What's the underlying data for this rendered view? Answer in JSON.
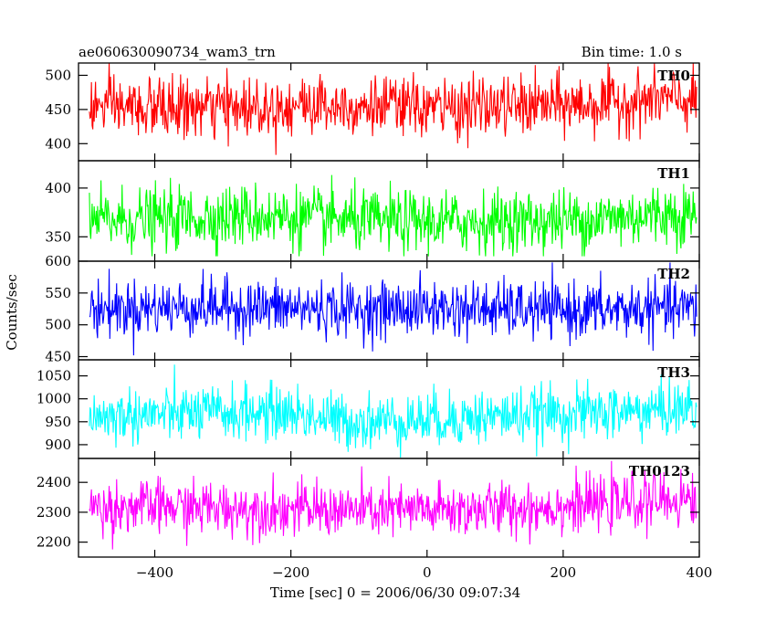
{
  "header": {
    "title": "ae060630090734_wam3_trn",
    "bin_time": "Bin time: 1.0 s"
  },
  "chart_data": {
    "type": "line",
    "x_range": [
      -512,
      400
    ],
    "xlabel": "Time [sec] 0 = 2006/06/30 09:07:34",
    "ylabel": "Counts/sec",
    "x_ticks": [
      -400,
      -200,
      0,
      200,
      400
    ],
    "x_tick_labels": [
      "−400",
      "−200",
      "0",
      "200",
      "400"
    ],
    "grid": false,
    "panels": [
      {
        "label": "TH0",
        "color": "#ff0000",
        "ylim": [
          375,
          518
        ],
        "y_ticks": [
          400,
          450,
          500
        ],
        "y_tick_labels": [
          "400",
          "450",
          "500"
        ],
        "mean": 455,
        "noise_sd": 22,
        "noise_clip": [
          378,
          518
        ],
        "trend": [
          [
            -512,
            455
          ],
          [
            -420,
            452
          ],
          [
            -300,
            452
          ],
          [
            -150,
            458
          ],
          [
            0,
            452
          ],
          [
            150,
            455
          ],
          [
            250,
            458
          ],
          [
            340,
            465
          ],
          [
            400,
            462
          ]
        ]
      },
      {
        "label": "TH1",
        "color": "#00ff00",
        "ylim": [
          325,
          428
        ],
        "y_ticks": [
          350,
          400
        ],
        "y_tick_labels": [
          "350",
          "400"
        ],
        "mean": 368,
        "noise_sd": 16,
        "noise_clip": [
          330,
          428
        ],
        "trend": [
          [
            -512,
            366
          ],
          [
            -400,
            368
          ],
          [
            -250,
            372
          ],
          [
            -100,
            366
          ],
          [
            0,
            365
          ],
          [
            150,
            366
          ],
          [
            250,
            368
          ],
          [
            350,
            374
          ],
          [
            400,
            372
          ]
        ]
      },
      {
        "label": "TH2",
        "color": "#0000ff",
        "ylim": [
          445,
          600
        ],
        "y_ticks": [
          450,
          500,
          550,
          600
        ],
        "y_tick_labels": [
          "450",
          "500",
          "550",
          "600"
        ],
        "mean": 525,
        "noise_sd": 22,
        "noise_clip": [
          452,
          598
        ],
        "trend": [
          [
            -512,
            525
          ],
          [
            -300,
            528
          ],
          [
            -100,
            524
          ],
          [
            0,
            526
          ],
          [
            200,
            522
          ],
          [
            300,
            524
          ],
          [
            400,
            526
          ]
        ]
      },
      {
        "label": "TH3",
        "color": "#00ffff",
        "ylim": [
          870,
          1085
        ],
        "y_ticks": [
          900,
          950,
          1000,
          1050
        ],
        "y_tick_labels": [
          "900",
          "950",
          "1000",
          "1050"
        ],
        "mean": 965,
        "noise_sd": 30,
        "noise_clip": [
          872,
          1080
        ],
        "trend": [
          [
            -512,
            960
          ],
          [
            -350,
            968
          ],
          [
            -200,
            970
          ],
          [
            -120,
            950
          ],
          [
            0,
            955
          ],
          [
            150,
            965
          ],
          [
            300,
            972
          ],
          [
            400,
            980
          ]
        ]
      },
      {
        "label": "TH0123",
        "color": "#ff00ff",
        "ylim": [
          2150,
          2480
        ],
        "y_ticks": [
          2200,
          2300,
          2400
        ],
        "y_tick_labels": [
          "2200",
          "2300",
          "2400"
        ],
        "mean": 2315,
        "noise_sd": 45,
        "noise_clip": [
          2155,
          2478
        ],
        "trend": [
          [
            -512,
            2315
          ],
          [
            -400,
            2318
          ],
          [
            -250,
            2312
          ],
          [
            -100,
            2305
          ],
          [
            0,
            2305
          ],
          [
            150,
            2315
          ],
          [
            250,
            2325
          ],
          [
            350,
            2340
          ],
          [
            400,
            2345
          ]
        ]
      }
    ]
  }
}
